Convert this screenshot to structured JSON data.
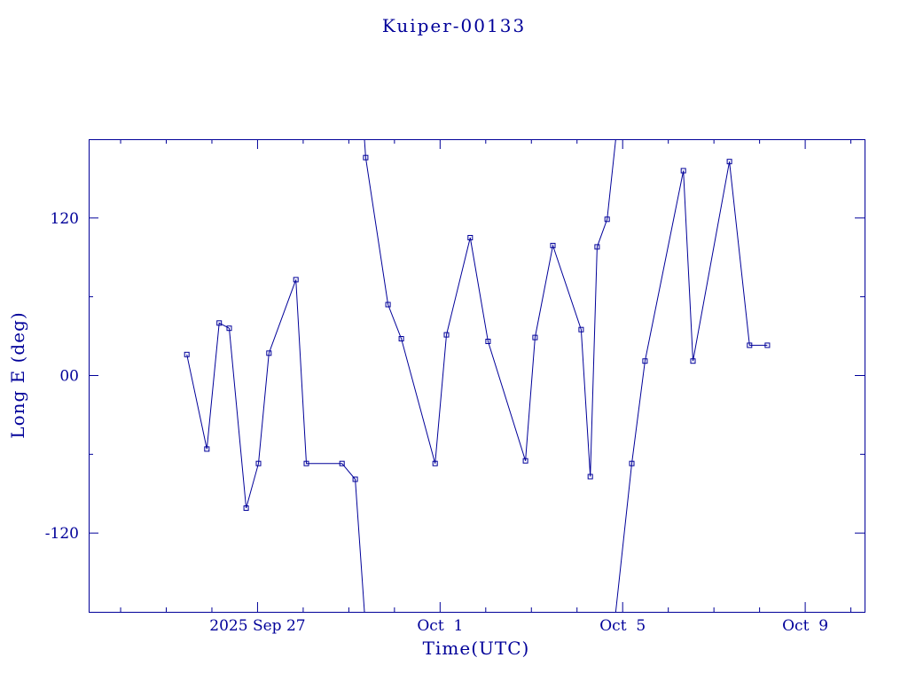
{
  "chart_data": {
    "type": "line",
    "title": "Kuiper-00133",
    "xlabel": "Time(UTC)",
    "ylabel": "Long E (deg)",
    "line_color": "#000099",
    "text_color": "#000099",
    "marker": "open-square",
    "grid": false,
    "x_unit": "days, 0 = 2025 Sep 27 00:00 UTC",
    "xlim": [
      -3.7,
      13.3
    ],
    "ylim": [
      -180,
      180
    ],
    "wrap": 180,
    "x_ticks": [
      {
        "value": 0,
        "label": "2025 Sep 27"
      },
      {
        "value": 4,
        "label": "Oct  1"
      },
      {
        "value": 8,
        "label": "Oct  5"
      },
      {
        "value": 12,
        "label": "Oct  9"
      }
    ],
    "x_minor_step": 1,
    "y_ticks": [
      {
        "value": 120,
        "label": "120"
      },
      {
        "value": 0,
        "label": "00"
      },
      {
        "value": -120,
        "label": "-120"
      }
    ],
    "y_minor_step": 60,
    "points": [
      [
        -1.55,
        16
      ],
      [
        -1.11,
        -56
      ],
      [
        -0.84,
        40
      ],
      [
        -0.62,
        36
      ],
      [
        -0.25,
        -101
      ],
      [
        0.02,
        -67
      ],
      [
        0.25,
        17
      ],
      [
        0.84,
        73
      ],
      [
        1.07,
        -67
      ],
      [
        1.85,
        -67
      ],
      [
        2.14,
        -79
      ],
      [
        2.37,
        166
      ],
      [
        2.86,
        54
      ],
      [
        3.15,
        28
      ],
      [
        3.89,
        -67
      ],
      [
        4.14,
        31
      ],
      [
        4.66,
        105
      ],
      [
        5.05,
        26
      ],
      [
        5.87,
        -65
      ],
      [
        6.08,
        29
      ],
      [
        6.47,
        99
      ],
      [
        7.09,
        35
      ],
      [
        7.29,
        -77
      ],
      [
        7.44,
        98
      ],
      [
        7.66,
        119
      ],
      [
        8.2,
        -67
      ],
      [
        8.49,
        11
      ],
      [
        9.33,
        156
      ],
      [
        9.54,
        11
      ],
      [
        10.34,
        163
      ],
      [
        10.78,
        23
      ],
      [
        11.17,
        23
      ]
    ]
  }
}
